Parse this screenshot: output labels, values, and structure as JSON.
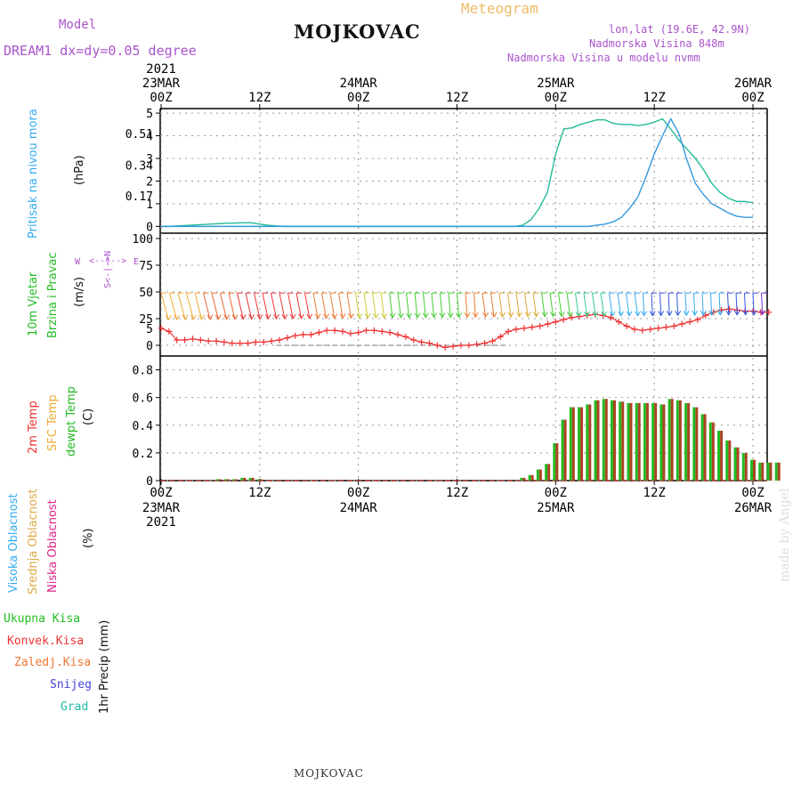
{
  "header": {
    "model_label": "Model",
    "model_desc": "DREAM1  dx=dy=0.05  degree",
    "meteogram_label": "Meteogram",
    "station": "MOJKOVAC",
    "coords": "lon,lat (19.6E, 42.9N)",
    "elev_station": "Nadmorska Visina 848m",
    "elev_model": "Nadmorska Visina u modelu nvmm",
    "footer_station": "MOJKOVAC",
    "watermark": "made by Angel"
  },
  "time_axis": {
    "top_year": "2021",
    "bottom_year": "2021",
    "ticks": [
      {
        "hour": 0,
        "label": "00Z",
        "date": "23MAR"
      },
      {
        "hour": 12,
        "label": "12Z",
        "date": ""
      },
      {
        "hour": 24,
        "label": "00Z",
        "date": "24MAR"
      },
      {
        "hour": 36,
        "label": "12Z",
        "date": ""
      },
      {
        "hour": 48,
        "label": "00Z",
        "date": "25MAR"
      },
      {
        "hour": 60,
        "label": "12Z",
        "date": ""
      },
      {
        "hour": 72,
        "label": "00Z",
        "date": "26MAR"
      }
    ]
  },
  "panel_labels": {
    "pressure": {
      "name": "Pritisak na nivou mora",
      "unit": "(hPa)"
    },
    "wind": {
      "name1": "10m Vjetar",
      "name2": "Brzina i Pravac",
      "unit": "(m/s)",
      "compass_ns": "S<-|->N",
      "compass_w": "W",
      "compass_e": "E"
    },
    "temp": {
      "name1": "2m Temp",
      "name2": "SFC Temp",
      "name3": "dewpt Temp",
      "unit": "(C)"
    },
    "cloud": {
      "high": "Visoka Oblacnost",
      "mid": "Srednja Oblacnost",
      "low": "Niska  Oblacnost",
      "unit": "(%)"
    },
    "precip": {
      "total": "Ukupna  Kisa",
      "conv": "Konvek.Kisa",
      "frz": "Zaledj.Kisa",
      "snow": "Snijeg",
      "hail": "Grad",
      "unit": "1hr Precip (mm)"
    }
  },
  "colors": {
    "pressure_label": "#33aaee",
    "wind_label": "#22bb22",
    "temp2m": "#ee3333",
    "sfc": "#eeaa33",
    "dewpt": "#22bb22",
    "cloud_high": "#33aaee",
    "cloud_mid": "#ddaa44",
    "cloud_low": "#dd2288",
    "precip_total": "#22bb22",
    "precip_conv": "#ee3333",
    "precip_frz": "#ee7733",
    "precip_snow": "#4444dd",
    "precip_hail": "#22bbaa",
    "model_text": "#aa55cc",
    "meteogram_text": "#eebb66"
  },
  "chart_data": [
    {
      "type": "line",
      "panel": "top",
      "y_ticks": [
        0,
        1,
        2,
        3,
        4,
        5
      ],
      "y_tick_labels_alt": [
        {
          "value": 4.1,
          "label": "0.51"
        },
        {
          "value": 2.7,
          "label": "0.34"
        },
        {
          "value": 1.35,
          "label": "0.17"
        }
      ],
      "ylim": [
        -0.3,
        5.2
      ],
      "series": [
        {
          "color": "#22bb99",
          "values": [
            0,
            0,
            0.02,
            0.04,
            0.06,
            0.08,
            0.1,
            0.12,
            0.14,
            0.15,
            0.16,
            0.16,
            0.1,
            0.05,
            0.02,
            0,
            0,
            0,
            0,
            0,
            0,
            0,
            0,
            0,
            0,
            0,
            0,
            0,
            0,
            0,
            0,
            0,
            0,
            0,
            0,
            0,
            0,
            0,
            0,
            0,
            0,
            0,
            0,
            0,
            0.05,
            0.3,
            0.8,
            1.5,
            3.2,
            4.3,
            4.35,
            4.5,
            4.6,
            4.7,
            4.7,
            4.55,
            4.5,
            4.5,
            4.45,
            4.5,
            4.6,
            4.75,
            4.3,
            3.8,
            3.4,
            3.0,
            2.5,
            1.9,
            1.5,
            1.25,
            1.1,
            1.1,
            1.05
          ]
        },
        {
          "color": "#3399dd",
          "values": [
            0,
            0,
            0,
            0,
            0,
            0,
            0,
            0,
            0,
            0,
            0,
            0,
            0,
            0,
            0,
            0,
            0,
            0,
            0,
            0,
            0,
            0,
            0,
            0,
            0,
            0,
            0,
            0,
            0,
            0,
            0,
            0,
            0,
            0,
            0,
            0,
            0,
            0,
            0,
            0,
            0,
            0,
            0,
            0,
            0,
            0,
            0,
            0,
            0,
            0,
            0,
            0,
            0,
            0.05,
            0.1,
            0.2,
            0.4,
            0.8,
            1.3,
            2.2,
            3.2,
            4.0,
            4.75,
            4.1,
            2.9,
            1.9,
            1.4,
            1.0,
            0.8,
            0.6,
            0.45,
            0.4,
            0.4
          ]
        }
      ]
    },
    {
      "type": "line",
      "panel": "middle",
      "y_ticks": [
        0,
        25,
        50,
        75,
        100
      ],
      "y_tick_labels_alt": [
        {
          "value": 16,
          "label": "5"
        }
      ],
      "ylim": [
        -10,
        105
      ],
      "series": [
        {
          "color": "#ee3333",
          "values": [
            16,
            13,
            5,
            5,
            6,
            5,
            4,
            4,
            3,
            2,
            2,
            2,
            3,
            3,
            4,
            5,
            7,
            9,
            10,
            10,
            12,
            14,
            14,
            13,
            11,
            12,
            14,
            14,
            13,
            12,
            10,
            8,
            5,
            3,
            2,
            0,
            -2,
            -1,
            0,
            0,
            1,
            2,
            4,
            8,
            13,
            15,
            16,
            17,
            18,
            20,
            22,
            24,
            26,
            27,
            28,
            29,
            28,
            26,
            22,
            18,
            15,
            14,
            15,
            16,
            17,
            18,
            20,
            22,
            24,
            28,
            31,
            33,
            34,
            33,
            32,
            32,
            31,
            31
          ]
        },
        {
          "color": "#777777",
          "dashed": true,
          "values": [
            null,
            null,
            null,
            null,
            null,
            null,
            null,
            null,
            null,
            null,
            null,
            null,
            null,
            null,
            0,
            0,
            0,
            0,
            0,
            0,
            0,
            0,
            0,
            0,
            0,
            0,
            0,
            0,
            0,
            0,
            0,
            0,
            0,
            0,
            0,
            0,
            0,
            0,
            0,
            0,
            0,
            0,
            0
          ]
        }
      ],
      "wind_barbs": {
        "color_stops": [
          "#eeaa33",
          "#ee6633",
          "#ee3333",
          "#ee3333",
          "#ee7733",
          "#cccc33",
          "#44cc33",
          "#44cc33",
          "#ee7733",
          "#ddaa33",
          "#44cc33",
          "#33cc88",
          "#33aaee",
          "#3355dd",
          "#33aaee",
          "#3355dd",
          "#7733dd"
        ],
        "count": 76
      }
    },
    {
      "type": "bar",
      "panel": "bottom",
      "y_ticks": [
        0,
        0.2,
        0.4,
        0.6,
        0.8
      ],
      "ylim": [
        0,
        0.9
      ],
      "values": [
        0,
        0,
        0,
        0,
        0,
        0,
        0,
        0.01,
        0.01,
        0.01,
        0.02,
        0.02,
        0.01,
        0,
        0,
        0,
        0,
        0,
        0,
        0,
        0,
        0,
        0,
        0,
        0,
        0,
        0,
        0,
        0,
        0,
        0,
        0,
        0,
        0,
        0,
        0,
        0,
        0,
        0,
        0,
        0,
        0,
        0,
        0,
        0.02,
        0.04,
        0.08,
        0.12,
        0.27,
        0.44,
        0.53,
        0.53,
        0.55,
        0.58,
        0.59,
        0.58,
        0.57,
        0.56,
        0.56,
        0.56,
        0.56,
        0.55,
        0.59,
        0.58,
        0.56,
        0.53,
        0.48,
        0.42,
        0.36,
        0.29,
        0.24,
        0.2,
        0.15,
        0.13,
        0.13,
        0.13
      ]
    }
  ]
}
